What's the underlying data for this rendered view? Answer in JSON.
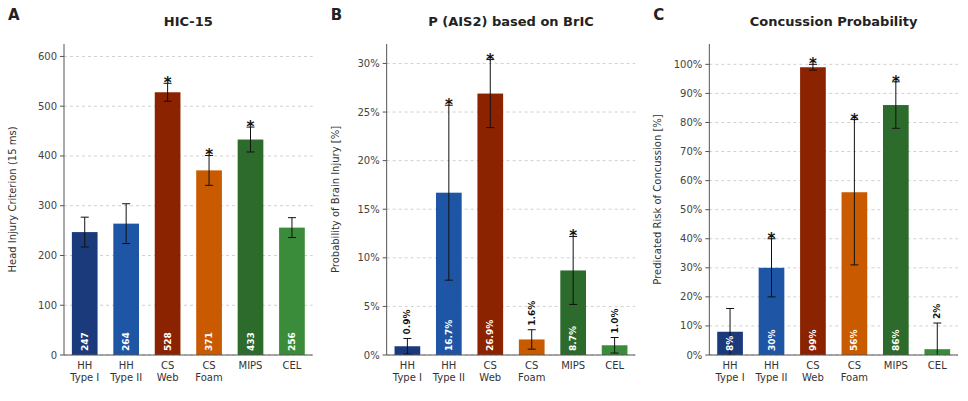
{
  "chart_data": [
    {
      "type": "bar",
      "title": "HIC-15",
      "y_label": "Head Injury Criterion (15 ms)",
      "annotations": [
        "A"
      ],
      "categories": [
        "HH\nType I",
        "HH\nType II",
        "CS\nWeb",
        "CS\nFoam",
        "MIPS",
        "CEL"
      ],
      "values": [
        247,
        264,
        528,
        371,
        433,
        256
      ],
      "errors": [
        30,
        40,
        18,
        30,
        25,
        20
      ],
      "significance": [
        null,
        null,
        "*",
        "*",
        "*",
        null
      ],
      "colors": [
        "#1a3a7c",
        "#1f55a5",
        "#8b2200",
        "#c95a00",
        "#2d6b2d",
        "#3a8c3a"
      ],
      "ylim": [
        0,
        625
      ],
      "yticks": [
        0,
        100,
        200,
        300,
        400,
        500,
        600
      ],
      "grid": true,
      "data_labels": true
    },
    {
      "type": "bar",
      "title": "P (AIS2) based on BrIC",
      "y_label": "Probability of Brain Injury [%]",
      "annotations": [
        "B"
      ],
      "categories": [
        "HH\nType I",
        "HH\nType II",
        "CS\nWeb",
        "CS\nFoam",
        "MIPS",
        "CEL"
      ],
      "values": [
        0.9,
        16.7,
        26.9,
        1.6,
        8.7,
        1.0
      ],
      "value_labels": [
        "0.9%",
        "16.7%",
        "26.9%",
        "1.6%",
        "8.7%",
        "1.0%"
      ],
      "errors": [
        0.8,
        9.0,
        3.5,
        1.0,
        3.5,
        0.8
      ],
      "significance": [
        null,
        "*",
        "*",
        null,
        "*",
        null
      ],
      "colors": [
        "#1a3a7c",
        "#1f55a5",
        "#8b2200",
        "#c95a00",
        "#2d6b2d",
        "#3a8c3a"
      ],
      "ylim": [
        0,
        32
      ],
      "yticks": [
        {
          "value": 0,
          "label": "0%"
        },
        {
          "value": 5,
          "label": "5%"
        },
        {
          "value": 10,
          "label": "10%"
        },
        {
          "value": 15,
          "label": "15%"
        },
        {
          "value": 20,
          "label": "20%"
        },
        {
          "value": 25,
          "label": "25%"
        },
        {
          "value": 30,
          "label": "30%"
        }
      ],
      "grid": true,
      "data_labels": true
    },
    {
      "type": "bar",
      "title": "Concussion Probability",
      "y_label": "Predicated Risk of Concussion [%]",
      "annotations": [
        "C"
      ],
      "categories": [
        "HH\nType I",
        "HH\nType II",
        "CS\nWeb",
        "CS\nFoam",
        "MIPS",
        "CEL"
      ],
      "values": [
        8,
        30,
        99,
        56,
        86,
        2
      ],
      "value_labels": [
        "8%",
        "30%",
        "99%",
        "56%",
        "86%",
        "2%"
      ],
      "errors": [
        8,
        10,
        1,
        25,
        8,
        9
      ],
      "significance": [
        null,
        "*",
        "*",
        "*",
        "*",
        null
      ],
      "colors": [
        "#1a3a7c",
        "#1f55a5",
        "#8b2200",
        "#c95a00",
        "#2d6b2d",
        "#3a8c3a"
      ],
      "ylim": [
        0,
        107
      ],
      "yticks": [
        {
          "value": 0,
          "label": "0%"
        },
        {
          "value": 10,
          "label": "10%"
        },
        {
          "value": 20,
          "label": "20%"
        },
        {
          "value": 30,
          "label": "30%"
        },
        {
          "value": 40,
          "label": "40%"
        },
        {
          "value": 50,
          "label": "50%"
        },
        {
          "value": 60,
          "label": "60%"
        },
        {
          "value": 70,
          "label": "70%"
        },
        {
          "value": 80,
          "label": "80%"
        },
        {
          "value": 90,
          "label": "90%"
        },
        {
          "value": 100,
          "label": "100%"
        }
      ],
      "grid": true,
      "data_labels": true
    }
  ]
}
